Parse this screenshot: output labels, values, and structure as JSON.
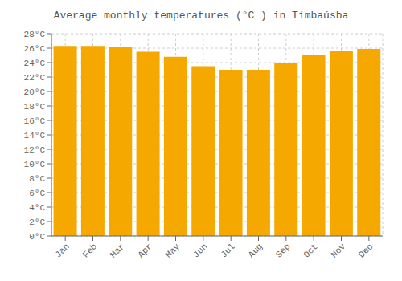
{
  "chart_data": {
    "type": "bar",
    "title": "Average monthly temperatures (°C ) in Timbaúsba",
    "categories": [
      "Jan",
      "Feb",
      "Mar",
      "Apr",
      "May",
      "Jun",
      "Jul",
      "Aug",
      "Sep",
      "Oct",
      "Nov",
      "Dec"
    ],
    "values": [
      26.3,
      26.3,
      26.1,
      25.5,
      24.8,
      23.5,
      23.0,
      23.0,
      23.9,
      25.0,
      25.6,
      25.9
    ],
    "color": "#F5A800",
    "ylim": [
      0,
      28
    ],
    "yticks": [
      {
        "value": 0,
        "label": "0°C"
      },
      {
        "value": 2,
        "label": "2°C"
      },
      {
        "value": 4,
        "label": "4°C"
      },
      {
        "value": 6,
        "label": "6°C"
      },
      {
        "value": 8,
        "label": "8°C"
      },
      {
        "value": 10,
        "label": "10°C"
      },
      {
        "value": 12,
        "label": "12°C"
      },
      {
        "value": 14,
        "label": "14°C"
      },
      {
        "value": 16,
        "label": "16°C"
      },
      {
        "value": 18,
        "label": "18°C"
      },
      {
        "value": 20,
        "label": "20°C"
      },
      {
        "value": 22,
        "label": "22°C"
      },
      {
        "value": 24,
        "label": "24°C"
      },
      {
        "value": 26,
        "label": "26°C"
      },
      {
        "value": 28,
        "label": "28°C"
      }
    ],
    "grid": true
  }
}
